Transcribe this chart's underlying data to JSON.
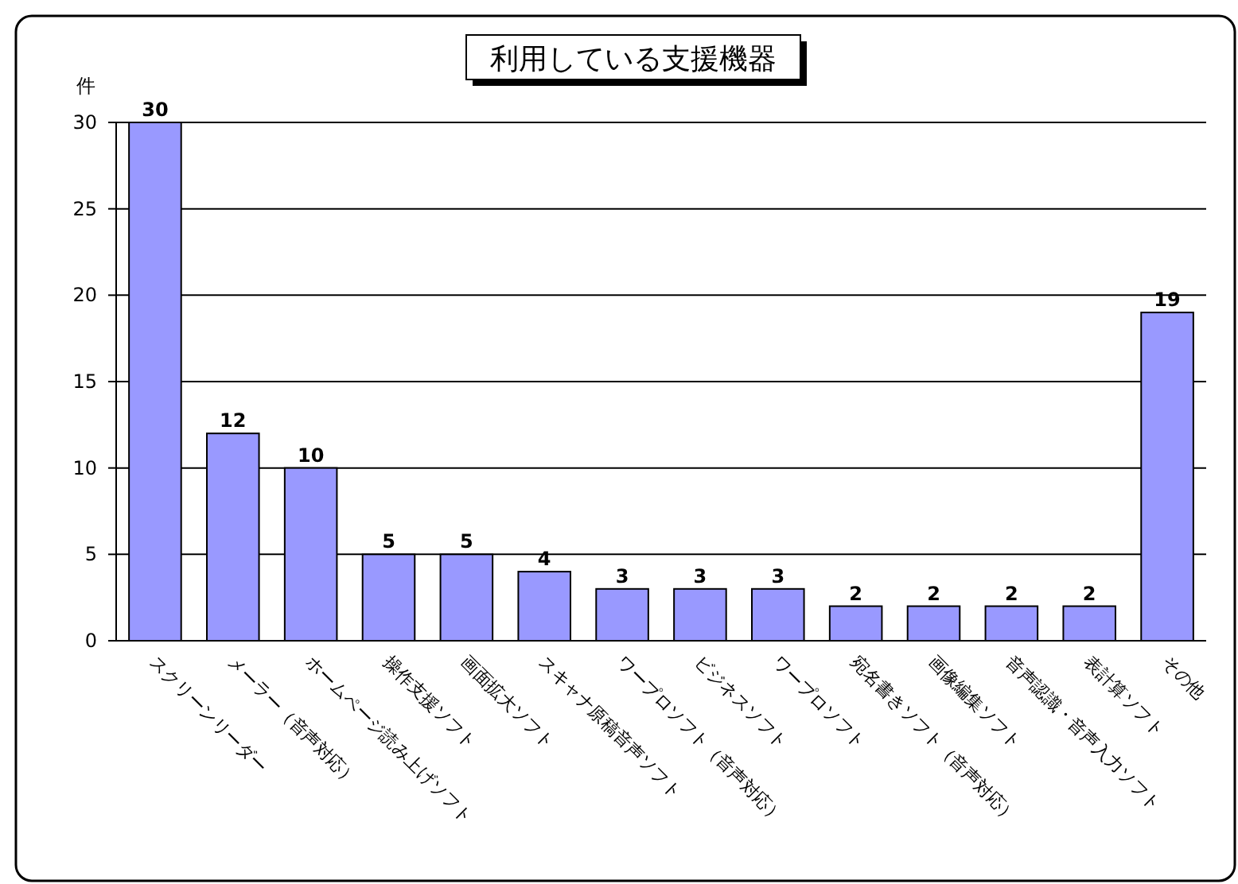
{
  "chart_data": {
    "type": "bar",
    "title": "利用している支援機器",
    "ylabel": "件",
    "categories": [
      "スクリーンリーダー",
      "メーラー（音声対応）",
      "ホームページ読み上げソフト",
      "操作支援ソフト",
      "画面拡大ソフト",
      "スキャナ原稿音声ソフト",
      "ワープロソフト（音声対応）",
      "ビジネスソフト",
      "ワープロソフト",
      "宛名書きソフト（音声対応）",
      "画像編集ソフト",
      "音声認識・音声入力ソフト",
      "表計算ソフト",
      "その他"
    ],
    "values": [
      30,
      12,
      10,
      5,
      5,
      4,
      3,
      3,
      3,
      2,
      2,
      2,
      2,
      19
    ],
    "color": "#9999ff",
    "ylim": [
      0,
      30
    ],
    "yticks": [
      0,
      5,
      10,
      15,
      20,
      25,
      30
    ],
    "grid": "y",
    "data_labels": true
  }
}
